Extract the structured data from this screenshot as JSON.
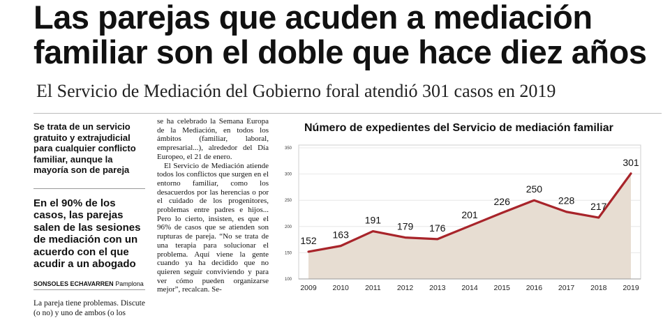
{
  "headline": {
    "line1": "Las parejas que acuden a mediación",
    "line2": "familiar son el doble que hace diez años"
  },
  "subhead": "El Servicio de Mediación del Gobierno foral atendió 301 casos en 2019",
  "sidebar": {
    "bullet1": "Se trata de un servicio gratuito y extrajudicial para cualquier conflicto familiar, aunque la mayoría son de pareja",
    "bullet2": "En el 90% de los casos, las parejas salen de las sesiones de mediación con un acuerdo con el que acudir a un abogado",
    "byline_author": "SONSOLES ECHAVARREN",
    "byline_place": "Pamplona",
    "body": "La pareja tiene problemas. Discute (o no) y uno de ambos (o los"
  },
  "column2": {
    "p1": "se ha celebrado la Semana Europa de la Mediación, en todos los ámbitos (familiar, laboral, empresarial...), alrededor del Día Europeo, el 21 de enero.",
    "p2": "El Servicio de Mediación atiende todos los conflictos que surgen en el entorno familiar, como los desacuerdos por las herencias o por el cuidado de los progenitores, problemas entre padres e hijos... Pero lo cierto, insisten, es que el 96% de casos que se atienden son rupturas de pareja. “No se trata de una terapia para solucionar el problema. Aquí viene la gente cuando ya ha decidido que no quieren seguir conviviendo y para ver cómo pueden organizarse mejor”, recalcan. Se-"
  },
  "chart_data": {
    "type": "area",
    "title": "Número de expedientes del Servicio de mediación familiar",
    "x": [
      "2009",
      "2010",
      "2011",
      "2012",
      "2013",
      "2014",
      "2015",
      "2016",
      "2017",
      "2018",
      "2019"
    ],
    "values": [
      152,
      163,
      191,
      179,
      176,
      201,
      226,
      250,
      228,
      217,
      301
    ],
    "yticks": [
      100,
      150,
      200,
      250,
      300,
      350
    ],
    "ylim": [
      100,
      350
    ],
    "grid": true,
    "line_color": "#a8242a",
    "fill_color": "#e7ddd2"
  }
}
